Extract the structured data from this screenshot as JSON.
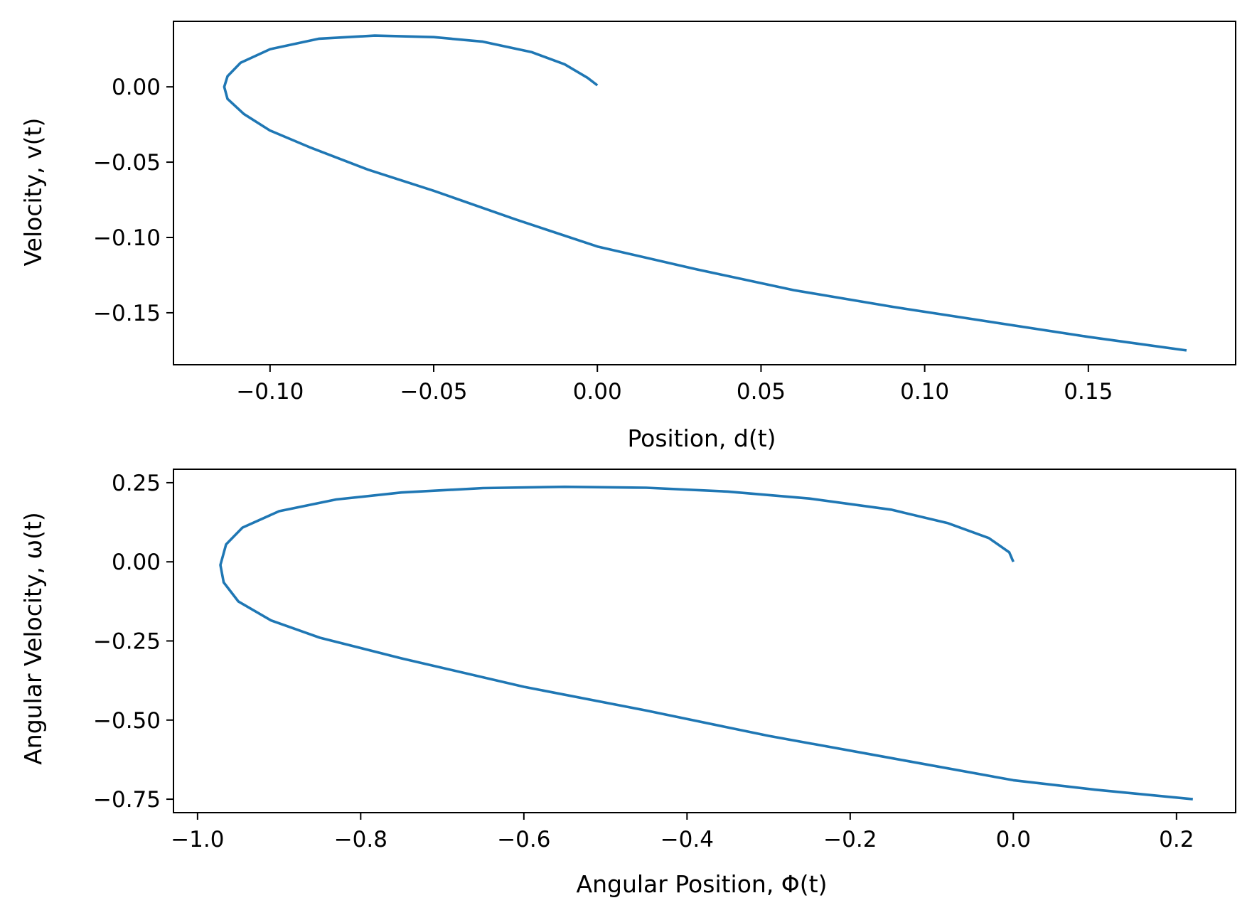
{
  "chart_data": [
    {
      "type": "line",
      "xlabel": "Position, d(t)",
      "ylabel": "Velocity, v(t)",
      "xlim": [
        -0.1295,
        0.195
      ],
      "ylim": [
        -0.1845,
        0.0435
      ],
      "xticks": [
        -0.1,
        -0.05,
        0.0,
        0.05,
        0.1,
        0.15
      ],
      "xtick_labels": [
        "−0.10",
        "−0.05",
        "0.00",
        "0.05",
        "0.10",
        "0.15"
      ],
      "yticks": [
        0.0,
        -0.05,
        -0.1,
        -0.15
      ],
      "ytick_labels": [
        "0.00",
        "−0.05",
        "−0.10",
        "−0.15"
      ],
      "grid": false,
      "series": [
        {
          "color": "#1f77b4",
          "x": [
            0.0,
            -0.003,
            -0.01,
            -0.02,
            -0.035,
            -0.05,
            -0.068,
            -0.085,
            -0.1,
            -0.109,
            -0.113,
            -0.114,
            -0.113,
            -0.108,
            -0.1,
            -0.088,
            -0.07,
            -0.05,
            -0.025,
            0.0,
            0.03,
            0.06,
            0.09,
            0.12,
            0.15,
            0.18
          ],
          "y": [
            0.001,
            0.006,
            0.015,
            0.023,
            0.03,
            0.033,
            0.034,
            0.032,
            0.025,
            0.016,
            0.007,
            0.0,
            -0.008,
            -0.018,
            -0.029,
            -0.04,
            -0.055,
            -0.069,
            -0.088,
            -0.106,
            -0.121,
            -0.135,
            -0.146,
            -0.156,
            -0.166,
            -0.175
          ]
        }
      ]
    },
    {
      "type": "line",
      "xlabel": "Angular Position, Φ(t)",
      "ylabel": "Angular Velocity, ω(t)",
      "xlim": [
        -1.0295,
        0.2725
      ],
      "ylim": [
        -0.7925,
        0.2925
      ],
      "xticks": [
        -1.0,
        -0.8,
        -0.6,
        -0.4,
        -0.2,
        0.0,
        0.2
      ],
      "xtick_labels": [
        "−1.0",
        "−0.8",
        "−0.6",
        "−0.4",
        "−0.2",
        "0.0",
        "0.2"
      ],
      "yticks": [
        0.25,
        0.0,
        -0.25,
        -0.5,
        -0.75
      ],
      "ytick_labels": [
        "0.25",
        "0.00",
        "−0.25",
        "−0.50",
        "−0.75"
      ],
      "grid": false,
      "series": [
        {
          "color": "#1f77b4",
          "x": [
            0.0,
            -0.005,
            -0.03,
            -0.08,
            -0.15,
            -0.25,
            -0.35,
            -0.45,
            -0.55,
            -0.65,
            -0.75,
            -0.83,
            -0.9,
            -0.945,
            -0.965,
            -0.972,
            -0.968,
            -0.95,
            -0.91,
            -0.85,
            -0.75,
            -0.6,
            -0.45,
            -0.3,
            -0.15,
            0.0,
            0.1,
            0.22
          ],
          "y": [
            0.0,
            0.03,
            0.075,
            0.122,
            0.165,
            0.2,
            0.222,
            0.234,
            0.237,
            0.233,
            0.219,
            0.197,
            0.16,
            0.108,
            0.055,
            -0.01,
            -0.065,
            -0.125,
            -0.185,
            -0.24,
            -0.305,
            -0.395,
            -0.47,
            -0.55,
            -0.62,
            -0.69,
            -0.72,
            -0.75
          ]
        }
      ]
    }
  ]
}
